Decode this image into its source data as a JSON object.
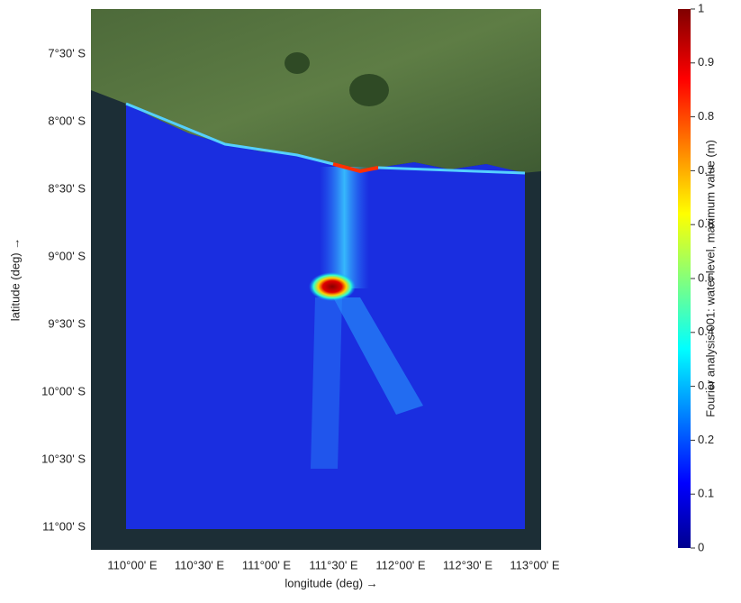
{
  "axes": {
    "xlabel": "longitude (deg) →",
    "ylabel": "latitude (deg) →",
    "xticks": [
      "110°00' E",
      "110°30' E",
      "111°00' E",
      "111°30' E",
      "112°00' E",
      "112°30' E",
      "113°00' E"
    ],
    "yticks": [
      "7°30' S",
      "8°00' S",
      "8°30' S",
      "9°00' S",
      "9°30' S",
      "10°00' S",
      "10°30' S",
      "11°00' S"
    ]
  },
  "colorbar": {
    "label": "Fourier analysis 001: water level, maximum value (m)",
    "lim": [
      0,
      1
    ],
    "ticks": [
      0,
      0.1,
      0.2,
      0.3,
      0.4,
      0.5,
      0.6,
      0.7,
      0.8,
      0.9,
      1
    ]
  }
}
